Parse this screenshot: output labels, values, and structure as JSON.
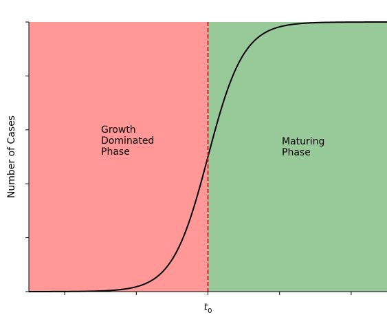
{
  "chart_data": {
    "type": "line",
    "ylabel": "Number of Cases",
    "x_tick_labels": [
      "",
      "",
      "t0",
      "",
      ""
    ],
    "x_marker": {
      "value": 0,
      "label_main": "t",
      "label_sub": "0",
      "color": "#d62728",
      "style": "dashed"
    },
    "xlim": [
      -5,
      5
    ],
    "ylim": [
      0,
      1
    ],
    "regions": [
      {
        "name": "growth",
        "label_lines": [
          "Growth",
          "Dominated",
          "Phase"
        ],
        "x_range": [
          -5,
          0
        ],
        "color": "#ff9896"
      },
      {
        "name": "maturing",
        "label_lines": [
          "Maturing",
          "Phase"
        ],
        "x_range": [
          0,
          5
        ],
        "color": "#98c998"
      }
    ],
    "series": [
      {
        "color": "#000000",
        "x": [
          -5,
          -4.5,
          -4,
          -3.5,
          -3,
          -2.5,
          -2,
          -1.5,
          -1,
          -0.5,
          0,
          0.5,
          1,
          1.5,
          2,
          2.5,
          3,
          3.5,
          4,
          4.5,
          5
        ],
        "y": [
          0.0,
          0.0001,
          0.0003,
          0.0009,
          0.0025,
          0.0067,
          0.018,
          0.047,
          0.119,
          0.269,
          0.5,
          0.731,
          0.881,
          0.953,
          0.982,
          0.9933,
          0.9975,
          0.9991,
          0.9997,
          0.9999,
          1.0
        ]
      }
    ]
  }
}
